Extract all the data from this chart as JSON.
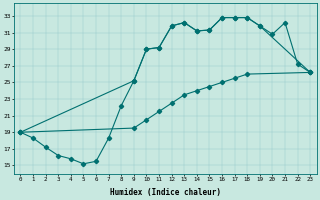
{
  "xlabel": "Humidex (Indice chaleur)",
  "ylabel": "",
  "background_color": "#c8e8e0",
  "line_color": "#007070",
  "xlim": [
    -0.5,
    23.5
  ],
  "ylim": [
    14,
    34.5
  ],
  "xticks": [
    0,
    1,
    2,
    3,
    4,
    5,
    6,
    7,
    8,
    9,
    10,
    11,
    12,
    13,
    14,
    15,
    16,
    17,
    18,
    19,
    20,
    21,
    22,
    23
  ],
  "yticks": [
    15,
    17,
    19,
    21,
    23,
    25,
    27,
    29,
    31,
    33
  ],
  "line1_x": [
    0,
    1,
    2,
    3,
    4,
    5,
    6,
    7,
    8,
    9,
    10,
    11,
    12,
    13,
    14,
    15,
    16,
    17,
    18,
    19,
    20,
    21,
    22,
    23
  ],
  "line1_y": [
    19,
    18.3,
    17.2,
    16.2,
    15.8,
    15.2,
    15.5,
    18.3,
    22.2,
    25.2,
    29.0,
    29.2,
    31.8,
    32.2,
    31.2,
    31.3,
    32.8,
    32.8,
    32.8,
    31.8,
    30.8,
    32.2,
    27.2,
    26.2
  ],
  "line2_x": [
    0,
    9,
    10,
    11,
    12,
    13,
    14,
    15,
    16,
    17,
    18,
    19,
    23
  ],
  "line2_y": [
    19,
    25.2,
    29.0,
    29.2,
    31.8,
    32.2,
    31.2,
    31.3,
    32.8,
    32.8,
    32.8,
    31.8,
    26.2
  ],
  "line3_x": [
    0,
    9,
    10,
    11,
    12,
    13,
    14,
    15,
    16,
    17,
    18,
    23
  ],
  "line3_y": [
    19,
    19.5,
    20.5,
    21.5,
    22.5,
    23.5,
    24.0,
    24.5,
    25.0,
    25.5,
    26.0,
    26.2
  ],
  "marker": "D",
  "markersize": 2.2
}
